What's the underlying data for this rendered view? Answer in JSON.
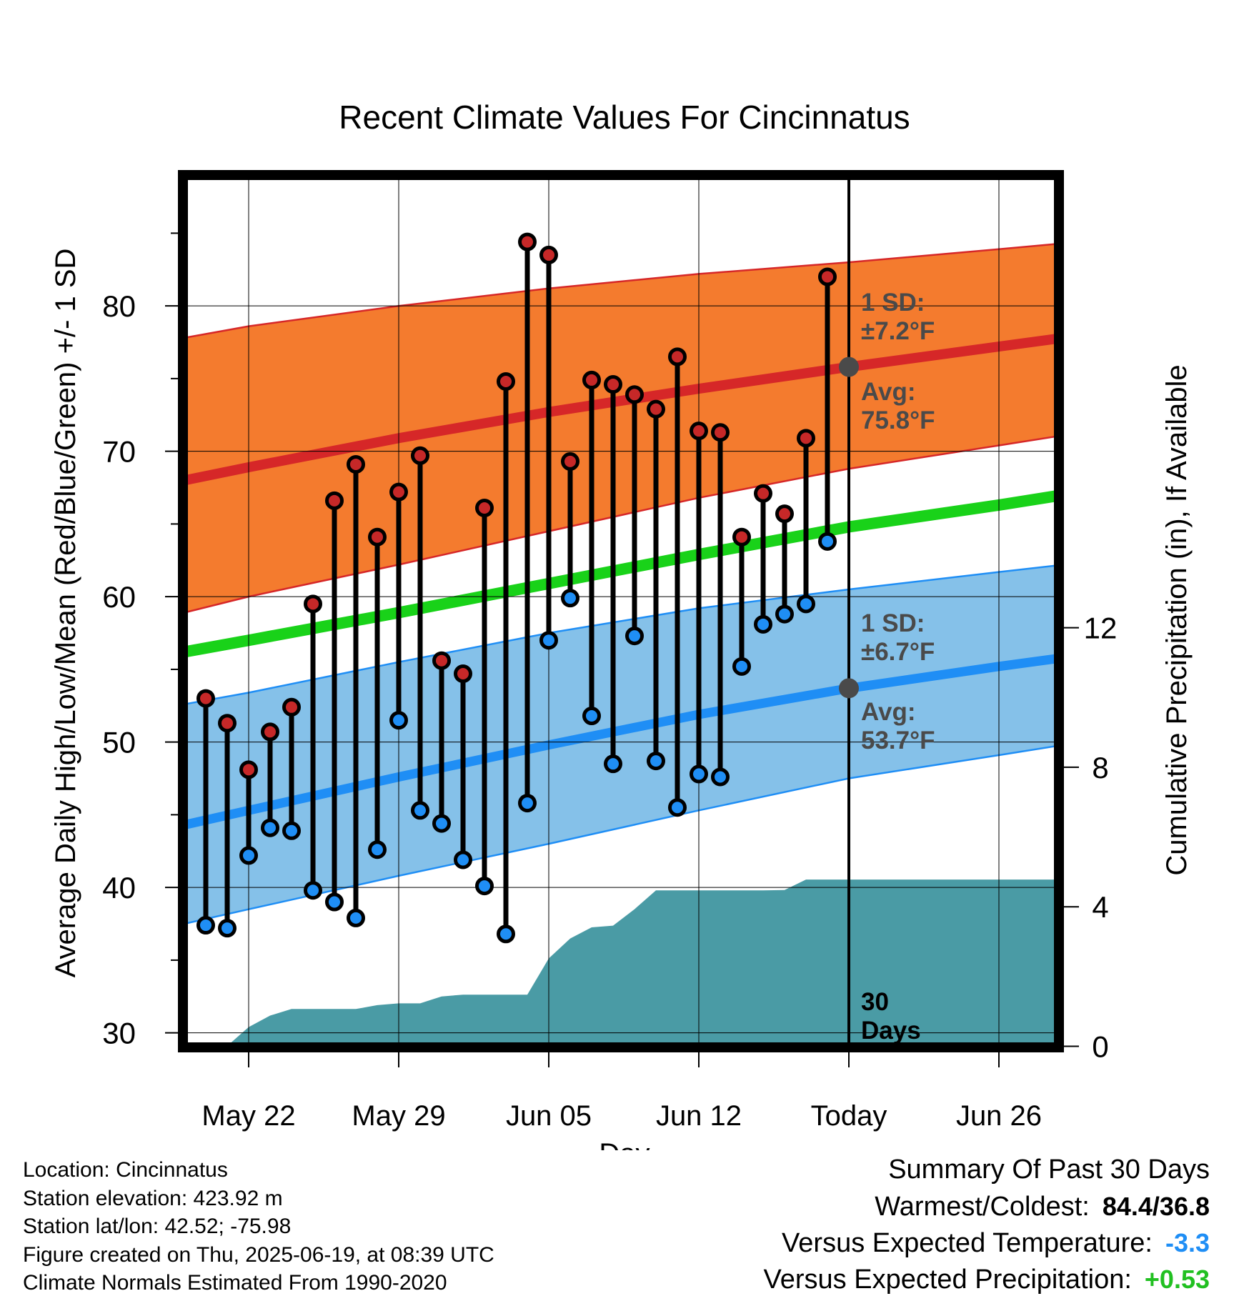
{
  "chart_data": {
    "type": "line",
    "title": "Recent Climate Values For Cincinnatus",
    "xlabel": "Day",
    "ylabel": "Average Daily High/Low/Mean (Red/Blue/Green) +/- 1 SD",
    "y2label": "Cumulative Precipitation (in), If Available",
    "ylim": [
      29,
      89
    ],
    "y2lim": [
      0,
      18.3
    ],
    "xlim": [
      -3.7,
      38.3
    ],
    "x_ticks": [
      {
        "x": 0,
        "label": "May 22"
      },
      {
        "x": 7,
        "label": "May 29"
      },
      {
        "x": 14,
        "label": "Jun 05"
      },
      {
        "x": 21,
        "label": "Jun 12"
      },
      {
        "x": 28,
        "label": "Today"
      },
      {
        "x": 35,
        "label": "Jun 26"
      }
    ],
    "y_ticks": [
      30,
      40,
      50,
      60,
      70,
      80
    ],
    "y2_ticks": [
      0,
      4,
      8,
      12
    ],
    "grid": true,
    "today_x": 28,
    "window_label": "30\nDays",
    "colors": {
      "high_band": "#f47b2e",
      "high_line": "#d62728",
      "high_edge": "#d62728",
      "low_band": "#85c1e9",
      "low_line": "#1f8ef5",
      "low_edge": "#1f8ef5",
      "mean_line": "#19d219",
      "precip": "#4a9ba5",
      "high_dot": "#c62828",
      "low_dot": "#1f8ef5",
      "annotation": "#4a4a4a",
      "neg_anomaly": "#1f8ef5",
      "pos_anomaly": "#21c021"
    },
    "normals": {
      "x": [
        -3,
        0,
        7,
        14,
        21,
        28,
        35,
        38
      ],
      "high_avg": [
        68.0,
        68.9,
        70.9,
        72.7,
        74.3,
        75.8,
        77.2,
        77.8
      ],
      "high_upper": [
        77.8,
        78.6,
        80.0,
        81.2,
        82.2,
        83.0,
        83.9,
        84.3
      ],
      "high_lower": [
        58.9,
        60.0,
        62.2,
        64.5,
        66.8,
        68.8,
        70.4,
        71.1
      ],
      "mean": [
        56.2,
        57.0,
        58.9,
        60.9,
        62.9,
        64.8,
        66.3,
        67.0
      ],
      "low_avg": [
        44.3,
        45.3,
        47.6,
        49.8,
        51.9,
        53.7,
        55.2,
        55.8
      ],
      "low_upper": [
        52.6,
        53.4,
        55.5,
        57.5,
        59.2,
        60.5,
        61.7,
        62.2
      ],
      "low_lower": [
        37.5,
        38.5,
        40.8,
        43.0,
        45.3,
        47.5,
        49.1,
        49.8
      ]
    },
    "series": [
      {
        "name": "High",
        "x": [
          -2,
          -1,
          0,
          1,
          2,
          3,
          4,
          5,
          6,
          7,
          8,
          9,
          10,
          11,
          12,
          13,
          14,
          15,
          16,
          17,
          18,
          19,
          20,
          21,
          22,
          23,
          24,
          25,
          26,
          27
        ],
        "values": [
          53.0,
          51.3,
          48.1,
          50.7,
          52.4,
          59.5,
          66.6,
          69.1,
          64.1,
          67.2,
          69.7,
          55.6,
          54.7,
          66.1,
          74.8,
          84.4,
          83.5,
          69.3,
          74.9,
          74.6,
          73.9,
          72.9,
          76.5,
          71.4,
          71.3,
          64.1,
          67.1,
          65.7,
          70.9,
          82.0
        ]
      },
      {
        "name": "Low",
        "x": [
          -2,
          -1,
          0,
          1,
          2,
          3,
          4,
          5,
          6,
          7,
          8,
          9,
          10,
          11,
          12,
          13,
          14,
          15,
          16,
          17,
          18,
          19,
          20,
          21,
          22,
          23,
          24,
          25,
          26,
          27
        ],
        "values": [
          37.4,
          37.2,
          42.2,
          44.1,
          43.9,
          39.8,
          39.0,
          37.9,
          42.6,
          51.5,
          45.3,
          44.4,
          41.9,
          40.1,
          36.8,
          45.8,
          57.0,
          59.9,
          51.8,
          48.5,
          57.3,
          48.7,
          45.5,
          47.8,
          47.6,
          55.2,
          58.1,
          58.8,
          59.5,
          63.8
        ]
      },
      {
        "name": "Precipitation",
        "x": [
          -1.4,
          -1,
          0,
          1,
          2,
          3,
          4,
          5,
          6,
          7,
          8,
          9,
          10,
          11,
          12,
          13,
          14,
          15,
          16,
          17,
          18,
          19,
          20,
          21,
          22,
          23,
          24,
          25,
          26,
          27,
          28,
          38.3
        ],
        "values": [
          0,
          0.01,
          0.55,
          0.88,
          1.07,
          1.07,
          1.07,
          1.07,
          1.18,
          1.23,
          1.23,
          1.43,
          1.48,
          1.48,
          1.48,
          1.48,
          2.52,
          3.09,
          3.41,
          3.46,
          3.93,
          4.47,
          4.47,
          4.47,
          4.47,
          4.47,
          4.47,
          4.48,
          4.78,
          4.78,
          4.78,
          4.78
        ]
      }
    ],
    "annotations": {
      "high_sd": "1 SD:\n±7.2°F",
      "high_avg": "Avg:\n75.8°F",
      "low_sd": "1 SD:\n±6.7°F",
      "low_avg": "Avg:\n53.7°F",
      "high_avg_value": 75.8,
      "low_avg_value": 53.7
    }
  },
  "info": {
    "location": "Location: Cincinnatus",
    "elevation": "Station elevation: 423.92 m",
    "latlon": "Station lat/lon: 42.52; -75.98",
    "created": "Figure created on Thu, 2025-06-19, at 08:39 UTC",
    "normals": "Climate Normals Estimated From 1990-2020"
  },
  "summary": {
    "title": "Summary Of Past 30 Days",
    "warmest_label": "Warmest/Coldest:",
    "warmest_value": "84.4/36.8",
    "temp_label": "Versus Expected Temperature:",
    "temp_value": "-3.3",
    "precip_label": "Versus Expected Precipitation:",
    "precip_value": "+0.53"
  }
}
